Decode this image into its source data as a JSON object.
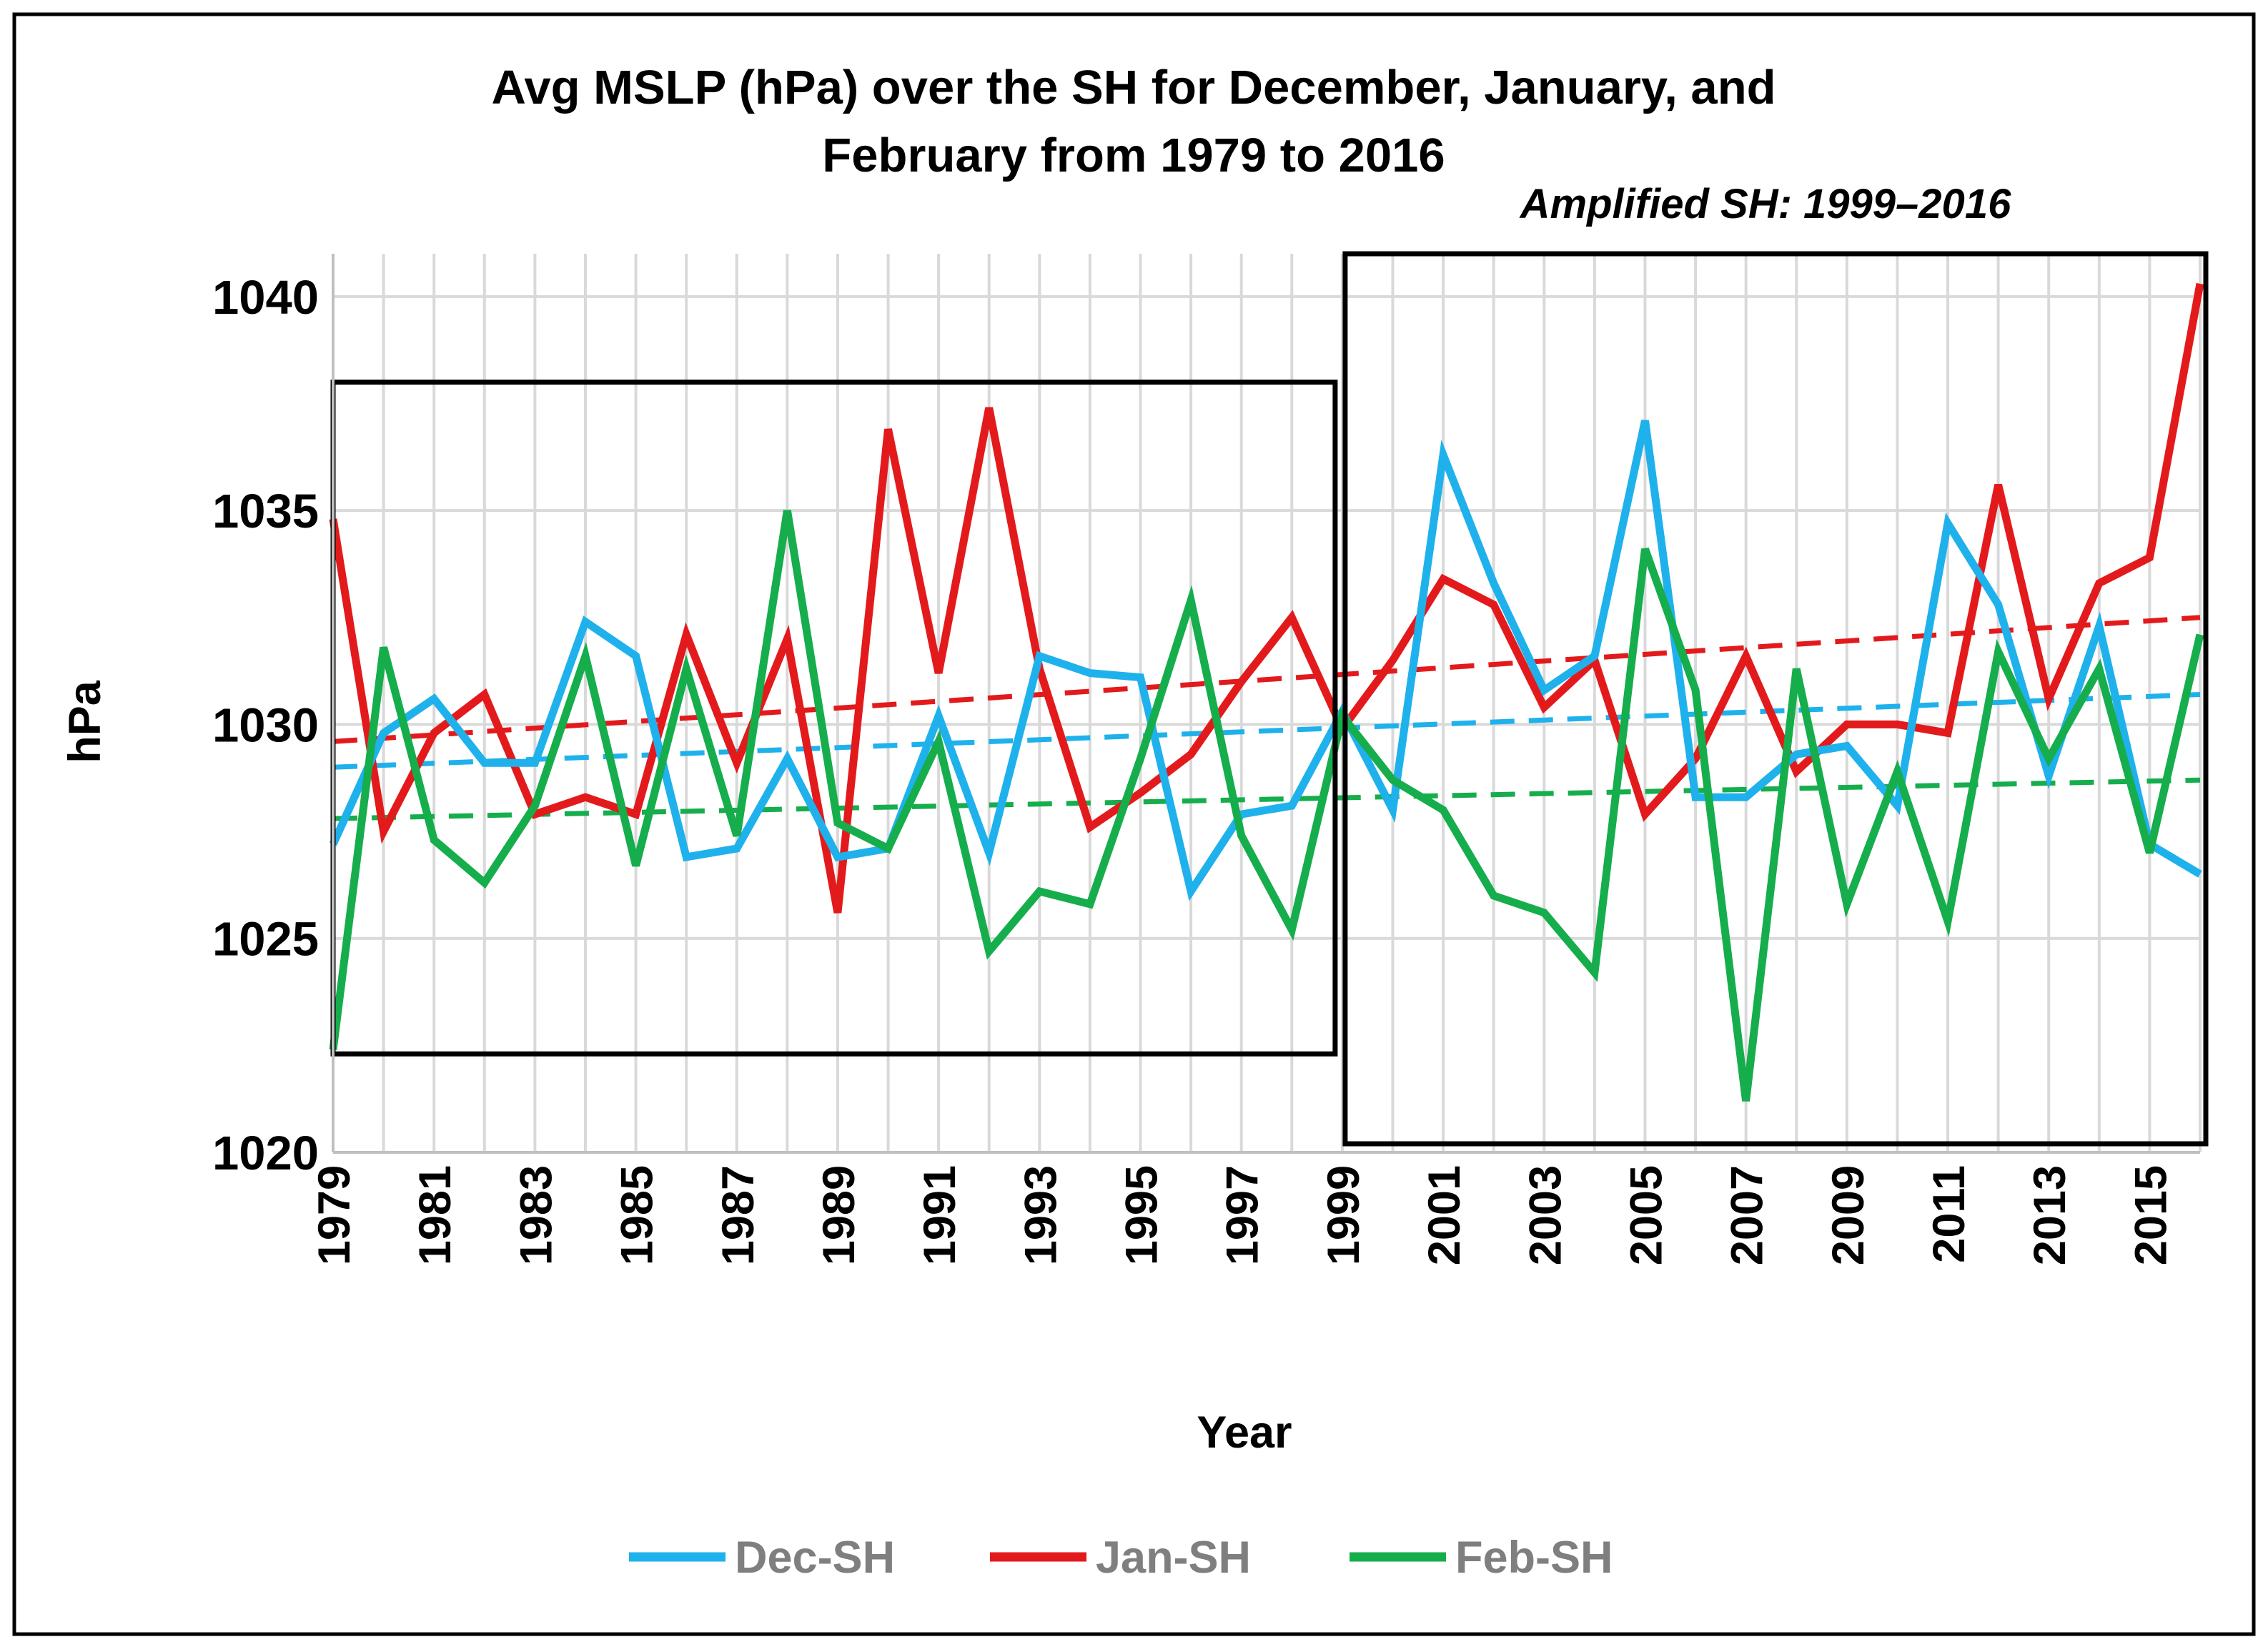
{
  "chart_data": {
    "type": "line",
    "title_lines": [
      "Avg MSLP (hPa) over the SH for December, January, and",
      "February from 1979 to 2016"
    ],
    "xlabel": "Year",
    "ylabel": "hPa",
    "ylim": [
      1020,
      1041
    ],
    "yticks": [
      1020,
      1025,
      1030,
      1035,
      1040
    ],
    "x": [
      1979,
      1980,
      1981,
      1982,
      1983,
      1984,
      1985,
      1986,
      1987,
      1988,
      1989,
      1990,
      1991,
      1992,
      1993,
      1994,
      1995,
      1996,
      1997,
      1998,
      1999,
      2000,
      2001,
      2002,
      2003,
      2004,
      2005,
      2006,
      2007,
      2008,
      2009,
      2010,
      2011,
      2012,
      2013,
      2014,
      2015,
      2016
    ],
    "xtick_labels": [
      "1979",
      "1981",
      "1983",
      "1985",
      "1987",
      "1989",
      "1991",
      "1993",
      "1995",
      "1997",
      "1999",
      "2001",
      "2003",
      "2005",
      "2007",
      "2009",
      "2011",
      "2013",
      "2015"
    ],
    "grid": true,
    "annotation": {
      "text": "Amplified SH: 1999–2016",
      "box1_years": [
        1979,
        1999
      ],
      "box1_values": [
        1022.3,
        1038.0
      ],
      "box2_years": [
        1999,
        2016
      ],
      "box2_values": [
        1020.2,
        1041.0
      ]
    },
    "series": [
      {
        "name": "Dec-SH",
        "color": "#1FB1EC",
        "values": [
          1027.2,
          1029.8,
          1030.6,
          1029.1,
          1029.1,
          1032.4,
          1031.6,
          1026.9,
          1027.1,
          1029.2,
          1026.9,
          1027.1,
          1030.2,
          1027.0,
          1031.6,
          1031.2,
          1031.1,
          1026.1,
          1027.9,
          1028.1,
          1030.3,
          1028.0,
          1036.3,
          1033.3,
          1030.8,
          1031.6,
          1037.1,
          1028.3,
          1028.3,
          1029.3,
          1029.5,
          1028.1,
          1034.7,
          1032.8,
          1028.8,
          1032.3,
          1027.2,
          1026.5
        ],
        "trend": [
          1029.0,
          1030.7
        ]
      },
      {
        "name": "Jan-SH",
        "color": "#E31A1C",
        "values": [
          1034.8,
          1027.5,
          1029.8,
          1030.7,
          1027.9,
          1028.3,
          1027.9,
          1032.1,
          1029.1,
          1032.0,
          1025.6,
          1036.9,
          1031.2,
          1037.4,
          1031.3,
          1027.6,
          1028.4,
          1029.3,
          1031.0,
          1032.5,
          1029.9,
          1031.5,
          1033.4,
          1032.8,
          1030.4,
          1031.5,
          1027.9,
          1029.2,
          1031.6,
          1028.9,
          1030.0,
          1030.0,
          1029.8,
          1035.6,
          1030.6,
          1033.3,
          1033.9,
          1040.3
        ],
        "trend": [
          1029.6,
          1032.5
        ]
      },
      {
        "name": "Feb-SH",
        "color": "#16AD4C",
        "values": [
          1022.4,
          1031.8,
          1027.3,
          1026.3,
          1028.1,
          1031.6,
          1026.7,
          1031.3,
          1027.4,
          1035.0,
          1027.7,
          1027.1,
          1029.6,
          1024.7,
          1026.1,
          1025.8,
          1029.2,
          1032.9,
          1027.4,
          1025.2,
          1030.2,
          1028.7,
          1028.0,
          1026.0,
          1025.6,
          1024.2,
          1034.1,
          1030.8,
          1021.2,
          1031.3,
          1025.8,
          1028.9,
          1025.4,
          1031.7,
          1029.2,
          1031.3,
          1027.0,
          1032.1
        ],
        "trend": [
          1027.8,
          1028.7
        ]
      }
    ]
  }
}
